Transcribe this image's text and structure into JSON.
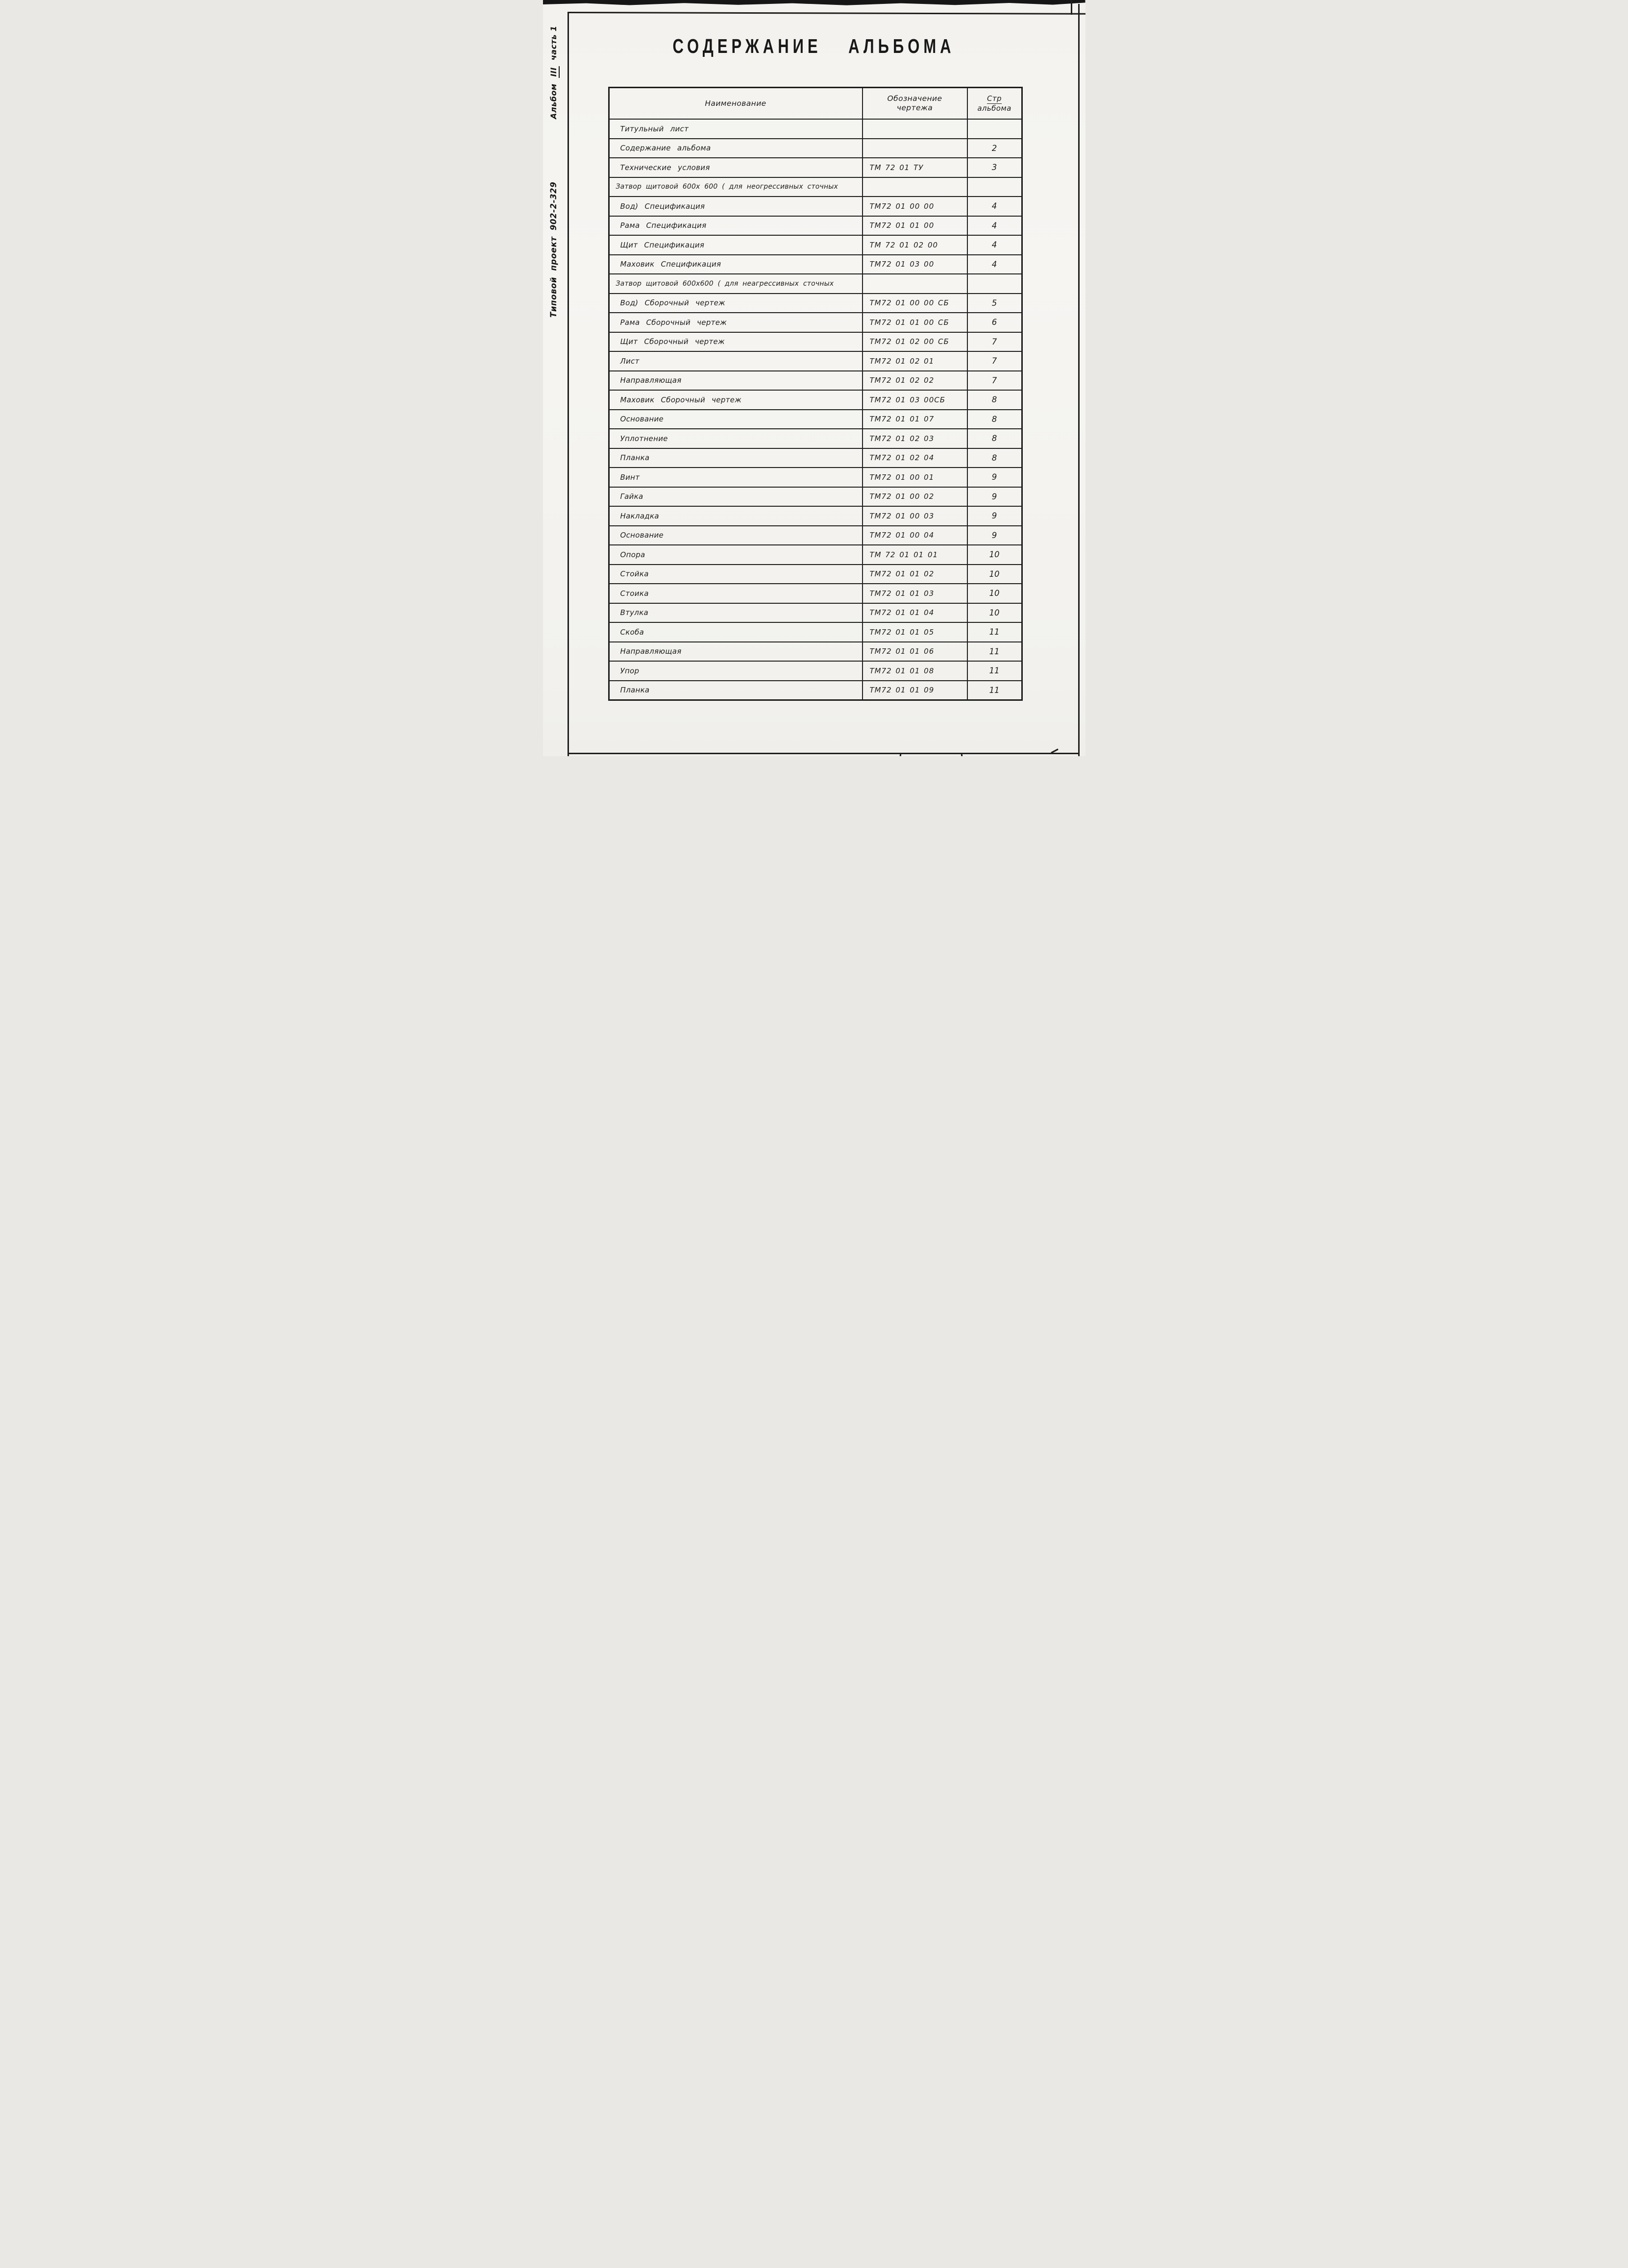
{
  "page": {
    "title": "СОДЕРЖАНИЕ АЛЬБОМА"
  },
  "sidebar": {
    "album_label": "Альбом",
    "album_roman": "III",
    "album_part": "часть 1",
    "project_label": "Типовой проект 902-2-329"
  },
  "table": {
    "headers": {
      "name": "Наименование",
      "designation_line1": "Обозначение",
      "designation_line2": "чертежа",
      "page_line1": "Стр",
      "page_line2": "альбома"
    },
    "rows": [
      {
        "name": "Титульный  лист",
        "designation": "",
        "page": ""
      },
      {
        "name": "Содержание альбома",
        "designation": "",
        "page": "2"
      },
      {
        "name": "Технические условия",
        "designation": "ТМ 72 01 ТУ",
        "page": "3"
      },
      {
        "name": "Затвор щитовой 600х 600 ( для неогрессивных сточных",
        "designation": "",
        "page": ""
      },
      {
        "name": "Вод) Спецификация",
        "designation": "ТМ72 01 00 00",
        "page": "4"
      },
      {
        "name": "Рама Спецификация",
        "designation": "ТМ72 01 01 00",
        "page": "4"
      },
      {
        "name": "Щит Спецификация",
        "designation": "ТМ 72 01 02 00",
        "page": "4"
      },
      {
        "name": "Маховик Спецификация",
        "designation": "ТМ72 01 03 00",
        "page": "4"
      },
      {
        "name": "Затвор щитовой 600х600 ( для неагрессивных сточных",
        "designation": "",
        "page": ""
      },
      {
        "name": "Вод) Сборочный чертеж",
        "designation": "ТМ72 01 00 00 СБ",
        "page": "5"
      },
      {
        "name": "Рама Сборочный чертеж",
        "designation": "ТМ72 01 01 00 СБ",
        "page": "6"
      },
      {
        "name": "Щит Сборочный чертеж",
        "designation": "ТМ72 01 02 00 СБ",
        "page": "7"
      },
      {
        "name": "Лист",
        "designation": "ТМ72 01 02 01",
        "page": "7"
      },
      {
        "name": "Направляющая",
        "designation": "ТМ72 01 02 02",
        "page": "7"
      },
      {
        "name": "Маховик Сборочный чертеж",
        "designation": "ТМ72 01 03 00СБ",
        "page": "8"
      },
      {
        "name": "Основание",
        "designation": "ТМ72 01 01 07",
        "page": "8"
      },
      {
        "name": "Уплотнение",
        "designation": "ТМ72 01 02 03",
        "page": "8"
      },
      {
        "name": "Планка",
        "designation": "ТМ72 01 02 04",
        "page": "8"
      },
      {
        "name": "Винт",
        "designation": "ТМ72 01 00 01",
        "page": "9"
      },
      {
        "name": "Гайка",
        "designation": "ТМ72 01 00 02",
        "page": "9"
      },
      {
        "name": "Накладка",
        "designation": "ТМ72 01 00 03",
        "page": "9"
      },
      {
        "name": "Основание",
        "designation": "ТМ72 01 00 04",
        "page": "9"
      },
      {
        "name": "Опора",
        "designation": "ТМ 72 01 01 01",
        "page": "10"
      },
      {
        "name": "Стойка",
        "designation": "ТМ72 01 01 02",
        "page": "10"
      },
      {
        "name": "Стоика",
        "designation": "ТМ72 01 01 03",
        "page": "10"
      },
      {
        "name": "Втулка",
        "designation": "ТМ72 01 01 04",
        "page": "10"
      },
      {
        "name": "Скоба",
        "designation": "ТМ72 01 01 05",
        "page": "11"
      },
      {
        "name": "Направляющая",
        "designation": "ТМ72 01 01 06",
        "page": "11"
      },
      {
        "name": "Упор",
        "designation": "ТМ72 01 01 08",
        "page": "11"
      },
      {
        "name": "Планка",
        "designation": "ТМ72 01 01 09",
        "page": "11"
      }
    ]
  }
}
